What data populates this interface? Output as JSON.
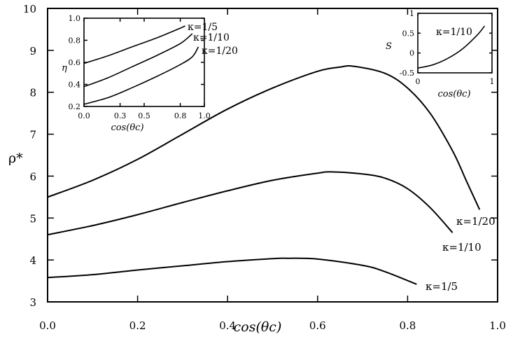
{
  "chart_data": {
    "main": {
      "type": "line",
      "xlabel": "cos(θc)",
      "ylabel": "ρ*",
      "xlim": [
        0,
        1.0
      ],
      "ylim": [
        3,
        10
      ],
      "x_ticks": [
        "0.0",
        "0.2",
        "0.4",
        "0.6",
        "0.8",
        "1.0"
      ],
      "y_ticks": [
        "3",
        "4",
        "5",
        "6",
        "7",
        "8",
        "9",
        "10"
      ],
      "series": [
        {
          "name": "κ=1/20",
          "label": "κ=1/20",
          "x": [
            0.0,
            0.1,
            0.2,
            0.3,
            0.4,
            0.5,
            0.6,
            0.65,
            0.68,
            0.75,
            0.8,
            0.85,
            0.9,
            0.93,
            0.96
          ],
          "y": [
            5.5,
            5.9,
            6.4,
            7.0,
            7.6,
            8.1,
            8.5,
            8.6,
            8.62,
            8.45,
            8.1,
            7.5,
            6.6,
            5.9,
            5.2
          ]
        },
        {
          "name": "κ=1/10",
          "label": "κ=1/10",
          "x": [
            0.0,
            0.1,
            0.2,
            0.3,
            0.4,
            0.5,
            0.6,
            0.63,
            0.7,
            0.75,
            0.8,
            0.85,
            0.9
          ],
          "y": [
            4.6,
            4.82,
            5.08,
            5.37,
            5.65,
            5.9,
            6.07,
            6.1,
            6.05,
            5.95,
            5.7,
            5.25,
            4.65
          ]
        },
        {
          "name": "κ=1/5",
          "label": "κ=1/5",
          "x": [
            0.0,
            0.1,
            0.2,
            0.3,
            0.4,
            0.5,
            0.53,
            0.6,
            0.7,
            0.75,
            0.82
          ],
          "y": [
            3.58,
            3.65,
            3.76,
            3.86,
            3.96,
            4.03,
            4.04,
            4.02,
            3.87,
            3.72,
            3.42
          ]
        }
      ]
    },
    "inset_eta": {
      "type": "line",
      "xlabel": "cos(θc)",
      "ylabel": "η",
      "xlim": [
        0,
        1.0
      ],
      "ylim": [
        0.2,
        1.0
      ],
      "x_ticks": [
        "0.0",
        "0.3",
        "0.5",
        "0.8",
        "1.0"
      ],
      "y_ticks": [
        "0.2",
        "0.4",
        "0.6",
        "0.8",
        "1.0"
      ],
      "series": [
        {
          "name": "κ=1/5",
          "label": "κ=1/5",
          "x": [
            0.0,
            0.2,
            0.4,
            0.6,
            0.8,
            0.84
          ],
          "y": [
            0.59,
            0.66,
            0.74,
            0.82,
            0.91,
            0.93
          ]
        },
        {
          "name": "κ=1/10",
          "label": "κ=1/10",
          "x": [
            0.0,
            0.2,
            0.4,
            0.6,
            0.8,
            0.9
          ],
          "y": [
            0.38,
            0.46,
            0.56,
            0.66,
            0.77,
            0.86
          ]
        },
        {
          "name": "κ=1/20",
          "label": "κ=1/20",
          "x": [
            0.0,
            0.2,
            0.4,
            0.6,
            0.8,
            0.9,
            0.95
          ],
          "y": [
            0.22,
            0.28,
            0.37,
            0.47,
            0.58,
            0.65,
            0.74
          ]
        }
      ]
    },
    "inset_s": {
      "type": "line",
      "xlabel": "cos(θc)",
      "ylabel": "S",
      "xlim": [
        0,
        1
      ],
      "ylim": [
        -0.5,
        1.0
      ],
      "x_ticks": [
        "0",
        "1"
      ],
      "y_ticks": [
        "-0.5",
        "0",
        "0.5",
        "1"
      ],
      "series": [
        {
          "name": "κ=1/10",
          "label": "κ=1/10",
          "x": [
            0.0,
            0.2,
            0.4,
            0.6,
            0.8,
            0.9
          ],
          "y": [
            -0.38,
            -0.3,
            -0.14,
            0.1,
            0.45,
            0.68
          ]
        }
      ]
    }
  }
}
